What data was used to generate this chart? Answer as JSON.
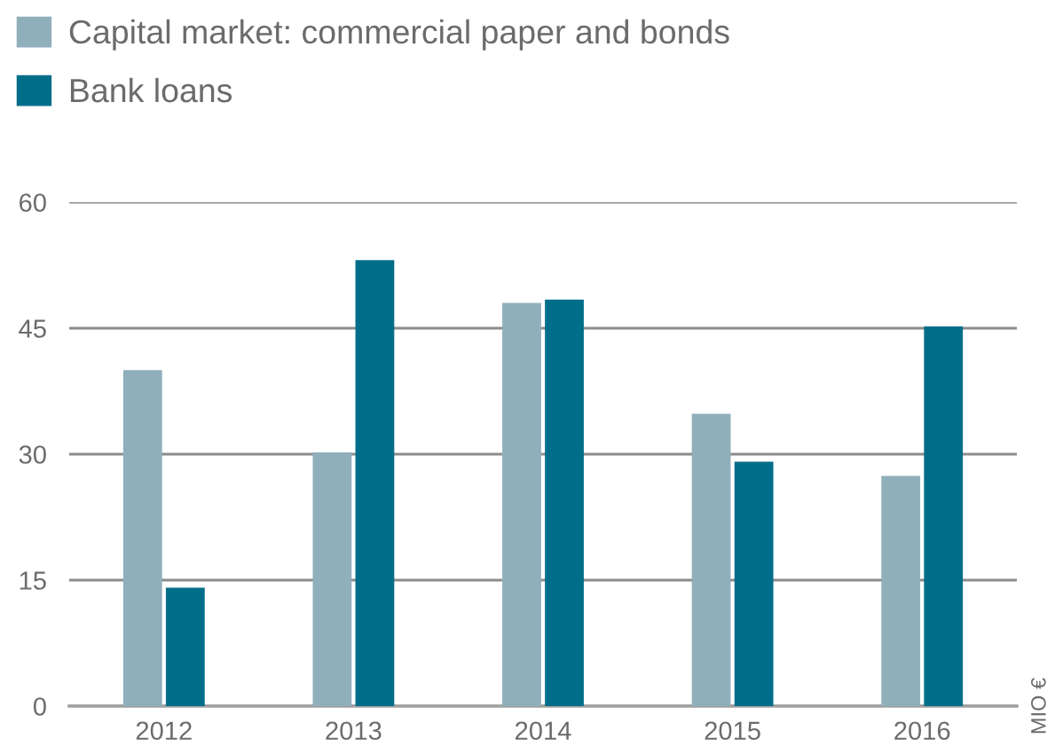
{
  "chart_data": {
    "type": "bar",
    "categories": [
      "2012",
      "2013",
      "2014",
      "2015",
      "2016"
    ],
    "series": [
      {
        "name": "Capital market: commercial paper and bonds",
        "color": "#8fafbb",
        "values": [
          40.0,
          30.2,
          48.0,
          34.8,
          27.4
        ]
      },
      {
        "name": "Bank loans",
        "color": "#006e8a",
        "values": [
          14.1,
          53.1,
          48.4,
          29.1,
          45.2
        ]
      }
    ],
    "ylabel": "MIO €",
    "ylim": [
      0,
      60
    ],
    "yticks": [
      0,
      15,
      30,
      45,
      60
    ],
    "grid": "y",
    "legend": "top left"
  }
}
